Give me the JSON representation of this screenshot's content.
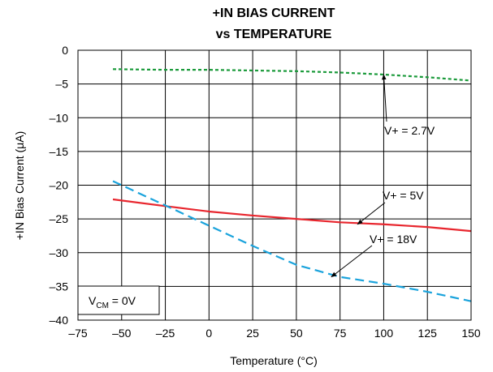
{
  "chart_data": {
    "type": "line",
    "title": [
      "+IN BIAS CURRENT",
      "vs TEMPERATURE"
    ],
    "xlabel": "Temperature (°C)",
    "ylabel": "+IN Bias Current (μA)",
    "xlim": [
      -75,
      150
    ],
    "ylim": [
      -40,
      0
    ],
    "xticks": [
      -75,
      -50,
      -25,
      0,
      25,
      50,
      75,
      100,
      125,
      150
    ],
    "yticks": [
      0,
      -5,
      -10,
      -15,
      -20,
      -25,
      -30,
      -35,
      -40
    ],
    "xtick_labels": [
      "–75",
      "–50",
      "–25",
      "0",
      "25",
      "50",
      "75",
      "100",
      "125",
      "150"
    ],
    "ytick_labels": [
      "0",
      "–5",
      "–10",
      "–15",
      "–20",
      "–25",
      "–30",
      "–35",
      "–40"
    ],
    "grid": true,
    "series": [
      {
        "name": "V+ = 2.7V",
        "color": "#1a9a3a",
        "dash": "dashed",
        "x": [
          -55,
          -25,
          0,
          25,
          50,
          75,
          100,
          125,
          150
        ],
        "y": [
          -2.8,
          -2.9,
          -2.9,
          -3.0,
          -3.1,
          -3.3,
          -3.6,
          -4.0,
          -4.5
        ]
      },
      {
        "name": "V+ = 5V",
        "color": "#e8262e",
        "dash": "solid",
        "x": [
          -55,
          -25,
          0,
          25,
          50,
          75,
          100,
          125,
          150
        ],
        "y": [
          -22.1,
          -23.1,
          -23.9,
          -24.5,
          -25.0,
          -25.5,
          -25.8,
          -26.2,
          -26.8
        ]
      },
      {
        "name": "V+ = 18V",
        "color": "#1aa3dc",
        "dash": "long-dash",
        "x": [
          -55,
          -25,
          0,
          25,
          50,
          75,
          100,
          125,
          150
        ],
        "y": [
          -19.4,
          -23.0,
          -26.0,
          -29.0,
          -31.8,
          -33.6,
          -34.6,
          -35.8,
          -37.2
        ]
      }
    ],
    "annotations": [
      {
        "text": "V+ = 2.7V",
        "series": "V+ = 2.7V",
        "arrow_to": [
          100,
          -3.6
        ]
      },
      {
        "text": "V+ = 5V",
        "series": "V+ = 5V",
        "arrow_to": [
          85,
          -25.8
        ]
      },
      {
        "text": "V+ = 18V",
        "series": "V+ = 18V",
        "arrow_to": [
          70,
          -33.6
        ]
      }
    ],
    "condition_box": {
      "main": "V",
      "sub": "CM",
      "rest": " = 0V"
    }
  }
}
